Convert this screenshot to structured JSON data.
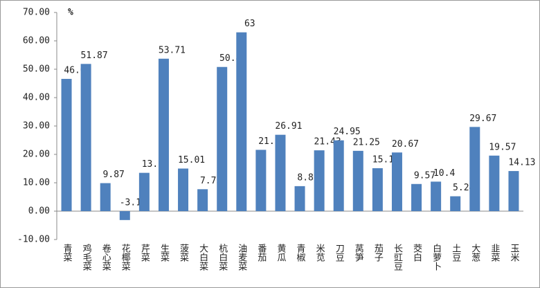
{
  "chart_data": {
    "type": "bar",
    "unit_label": "%",
    "categories": [
      "青菜",
      "鸡毛菜",
      "卷心菜",
      "花椰菜",
      "芹菜",
      "生菜",
      "菠菜",
      "大白菜",
      "杭白菜",
      "油麦菜",
      "番茄",
      "黄瓜",
      "青椒",
      "米苋",
      "刀豆",
      "莴笋",
      "茄子",
      "长豇豆",
      "茭白",
      "白萝卜",
      "土豆",
      "大葱",
      "韭菜",
      "玉米"
    ],
    "values": [
      46.6,
      51.87,
      9.87,
      -3.13,
      13.5,
      53.71,
      15.01,
      7.73,
      50.8,
      63,
      21.6,
      26.91,
      8.81,
      21.43,
      24.95,
      21.25,
      15.14,
      20.67,
      9.57,
      10.4,
      5.24,
      29.67,
      19.57,
      14.13
    ],
    "color": "#4f81bd",
    "ylim": [
      -10,
      70
    ],
    "yticks": [
      {
        "value": -10,
        "label": "-10.00"
      },
      {
        "value": 0,
        "label": "0.00"
      },
      {
        "value": 10,
        "label": "10.00"
      },
      {
        "value": 20,
        "label": "20.00"
      },
      {
        "value": 30,
        "label": "30.00"
      },
      {
        "value": 40,
        "label": "40.00"
      },
      {
        "value": 50,
        "label": "50.00"
      },
      {
        "value": 60,
        "label": "60.00"
      },
      {
        "value": 70,
        "label": "70.00"
      }
    ],
    "grid": false
  }
}
